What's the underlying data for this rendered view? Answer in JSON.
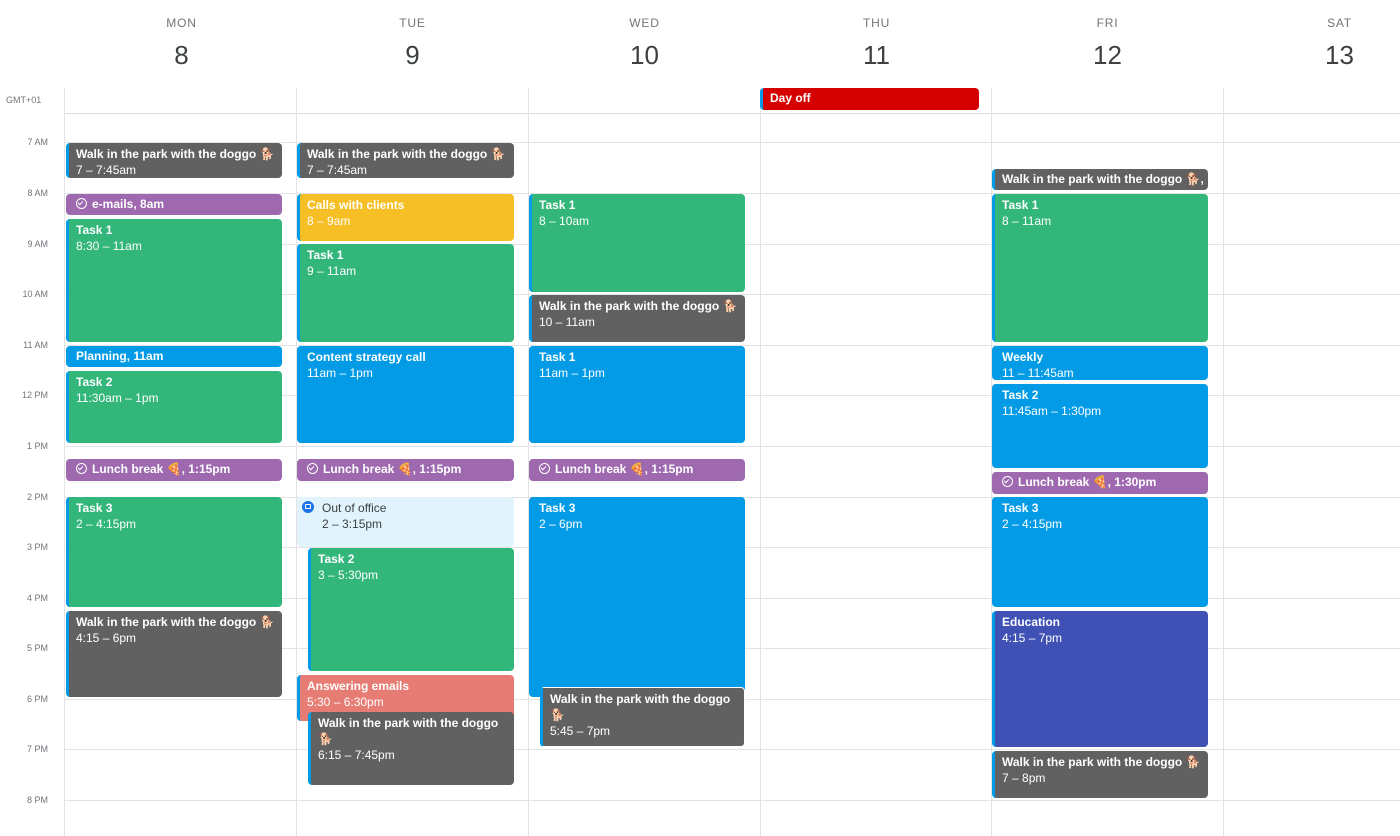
{
  "timezone": "GMT+01",
  "days": [
    {
      "dow": "MON",
      "num": "8"
    },
    {
      "dow": "TUE",
      "num": "9"
    },
    {
      "dow": "WED",
      "num": "10"
    },
    {
      "dow": "THU",
      "num": "11"
    },
    {
      "dow": "FRI",
      "num": "12"
    },
    {
      "dow": "SAT",
      "num": "13"
    }
  ],
  "hours": [
    "7 AM",
    "8 AM",
    "9 AM",
    "10 AM",
    "11 AM",
    "12 PM",
    "1 PM",
    "2 PM",
    "3 PM",
    "4 PM",
    "5 PM",
    "6 PM",
    "7 PM",
    "8 PM"
  ],
  "allday": [
    {
      "title": "Day off",
      "day": "THU",
      "color": "#d50000"
    }
  ],
  "events": {
    "mon": {
      "walk1": {
        "title": "Walk in the park with the doggo 🐕",
        "time": "7 – 7:45am"
      },
      "emails": {
        "title": "e-mails, 8am"
      },
      "task1": {
        "title": "Task 1",
        "time": "8:30 – 11am"
      },
      "planning": {
        "title": "Planning, 11am"
      },
      "task2": {
        "title": "Task 2",
        "time": "11:30am – 1pm"
      },
      "lunch": {
        "title": "Lunch break 🍕, 1:15pm"
      },
      "task3": {
        "title": "Task 3",
        "time": "2 – 4:15pm"
      },
      "walk2": {
        "title": "Walk in the park with the doggo 🐕",
        "time": "4:15 – 6pm"
      }
    },
    "tue": {
      "walk1": {
        "title": "Walk in the park with the doggo 🐕",
        "time": "7 – 7:45am"
      },
      "calls": {
        "title": "Calls with clients",
        "time": "8 – 9am"
      },
      "task1": {
        "title": "Task 1",
        "time": "9 – 11am"
      },
      "content": {
        "title": "Content strategy call",
        "time": "11am – 1pm"
      },
      "lunch": {
        "title": "Lunch break 🍕, 1:15pm"
      },
      "ooo": {
        "title": "Out of office",
        "time": "2 – 3:15pm"
      },
      "task2": {
        "title": "Task 2",
        "time": "3 – 5:30pm"
      },
      "answering": {
        "title": "Answering emails",
        "time": "5:30 – 6:30pm"
      },
      "walk2": {
        "title": "Walk in the park with the doggo 🐕",
        "time": "6:15 – 7:45pm"
      }
    },
    "wed": {
      "task1a": {
        "title": "Task 1",
        "time": "8 – 10am"
      },
      "walk1": {
        "title": "Walk in the park with the doggo 🐕",
        "time": "10 – 11am"
      },
      "task1b": {
        "title": "Task 1",
        "time": "11am – 1pm"
      },
      "lunch": {
        "title": "Lunch break 🍕, 1:15pm"
      },
      "task3": {
        "title": "Task 3",
        "time": "2 – 6pm"
      },
      "walk2": {
        "title": "Walk in the park with the doggo 🐕",
        "time": "5:45 – 7pm"
      }
    },
    "fri": {
      "walk1": {
        "title": "Walk in the park with the doggo 🐕,"
      },
      "task1": {
        "title": "Task 1",
        "time": "8 – 11am"
      },
      "weekly": {
        "title": "Weekly",
        "time": "11 – 11:45am"
      },
      "task2": {
        "title": "Task 2",
        "time": "11:45am – 1:30pm"
      },
      "lunch": {
        "title": "Lunch break 🍕, 1:30pm"
      },
      "task3": {
        "title": "Task 3",
        "time": "2 – 4:15pm"
      },
      "education": {
        "title": "Education",
        "time": "4:15 – 7pm"
      },
      "walk2": {
        "title": "Walk in the park with the doggo 🐕",
        "time": "7 – 8pm"
      }
    }
  }
}
